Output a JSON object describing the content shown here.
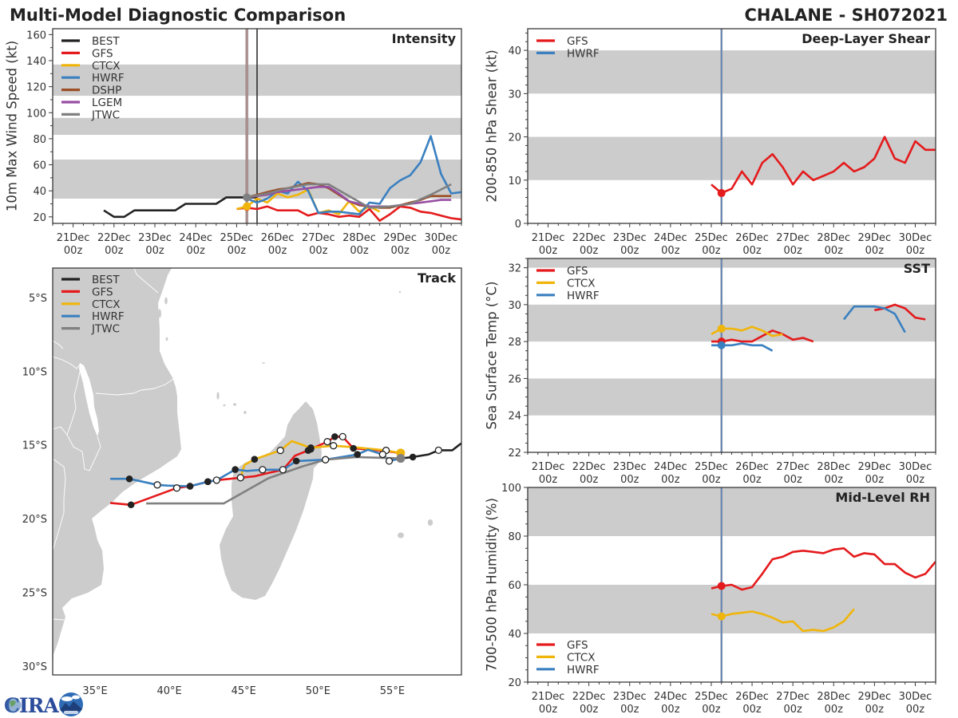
{
  "header": {
    "title": "Multi-Model Diagnostic Comparison",
    "storm_id": "CHALANE - SH072021"
  },
  "logo": {
    "text": "CIRA"
  },
  "colors": {
    "BEST": "#222222",
    "GFS": "#e41a1c",
    "CTCX": "#f0b50a",
    "HWRF": "#3a80c0",
    "DSHP": "#9b4f26",
    "LGEM": "#984ea3",
    "JTWC": "#808080",
    "band": "#cccccc",
    "land": "#cccccc",
    "forecast_init_line": "#5b7fb8",
    "intensity_init_line": "#a07878",
    "intensity_current_line": "#222222"
  },
  "time_axis": {
    "range": [
      "20Dec 12z",
      "30Dec 12z"
    ],
    "ticks": [
      {
        "day": "21Dec",
        "hour": "00z"
      },
      {
        "day": "22Dec",
        "hour": "00z"
      },
      {
        "day": "23Dec",
        "hour": "00z"
      },
      {
        "day": "24Dec",
        "hour": "00z"
      },
      {
        "day": "25Dec",
        "hour": "00z"
      },
      {
        "day": "26Dec",
        "hour": "00z"
      },
      {
        "day": "27Dec",
        "hour": "00z"
      },
      {
        "day": "28Dec",
        "hour": "00z"
      },
      {
        "day": "29Dec",
        "hour": "00z"
      },
      {
        "day": "30Dec",
        "hour": "00z"
      }
    ]
  },
  "chart_data": [
    {
      "id": "intensity",
      "type": "line",
      "title": "Intensity",
      "xlabel": "",
      "ylabel": "10m Max Wind Speed (kt)",
      "ylim": [
        15,
        164.5
      ],
      "yticks": [
        20,
        40,
        60,
        80,
        100,
        120,
        140,
        160
      ],
      "grid": false,
      "bands": [
        [
          34,
          64
        ],
        [
          83,
          96
        ],
        [
          113,
          137
        ]
      ],
      "legend": [
        "BEST",
        "GFS",
        "CTCX",
        "HWRF",
        "DSHP",
        "LGEM",
        "JTWC"
      ],
      "legend_position": "upper-left",
      "vlines": [
        {
          "time": "25Dec 06z",
          "color_key": "intensity_init_line"
        },
        {
          "time": "25Dec 12z",
          "color_key": "intensity_current_line"
        }
      ],
      "series": [
        {
          "name": "BEST",
          "start": "21Dec 18z",
          "step_h": 6,
          "values": [
            25,
            20,
            20,
            25,
            25,
            25,
            25,
            25,
            30,
            30,
            30,
            30,
            35,
            35,
            35,
            35
          ]
        },
        {
          "name": "GFS",
          "start": "25Dec 00z",
          "step_h": 6,
          "values": [
            26,
            27,
            26,
            28,
            25,
            25,
            25,
            21,
            23,
            22,
            20,
            21,
            20,
            26,
            17,
            22,
            28,
            27,
            24,
            23,
            21,
            19,
            18
          ]
        },
        {
          "name": "CTCX",
          "start": "25Dec 00z",
          "step_h": 6,
          "values": [
            26,
            28,
            34,
            31,
            38,
            35,
            37,
            41,
            23,
            25,
            22,
            32,
            24,
            28,
            24
          ]
        },
        {
          "name": "HWRF",
          "start": "25Dec 06z",
          "step_h": 6,
          "values": [
            34,
            31,
            34,
            40,
            38,
            47,
            40,
            23,
            24,
            24,
            23,
            22,
            31,
            30,
            42,
            48,
            52,
            62,
            82,
            53,
            38,
            39
          ]
        },
        {
          "name": "DSHP",
          "start": "25Dec 06z",
          "step_h": 6,
          "values": [
            35,
            37,
            39,
            41,
            42,
            44,
            46,
            45,
            42,
            37,
            32,
            29,
            28,
            27,
            27,
            29,
            31,
            33,
            36,
            36,
            36
          ]
        },
        {
          "name": "LGEM",
          "start": "25Dec 06z",
          "step_h": 6,
          "values": [
            35,
            36,
            37,
            39,
            40,
            41,
            42,
            43,
            43,
            38,
            32,
            30,
            28,
            28,
            28,
            29,
            30,
            31,
            32,
            33,
            33
          ]
        },
        {
          "name": "JTWC",
          "start": "25Dec 06z",
          "step_h": 12,
          "values": [
            35,
            38,
            42,
            45,
            45,
            36,
            27,
            28,
            30,
            37,
            45
          ]
        }
      ],
      "markers": [
        {
          "series": "GFS",
          "time": "25Dec 06z",
          "value": 27
        },
        {
          "series": "CTCX",
          "time": "25Dec 06z",
          "value": 28
        },
        {
          "series": "JTWC",
          "time": "25Dec 06z",
          "value": 35
        }
      ]
    },
    {
      "id": "shear",
      "type": "line",
      "title": "Deep-Layer Shear",
      "xlabel": "",
      "ylabel": "200-850 hPa Shear (kt)",
      "ylim": [
        0,
        45
      ],
      "yticks": [
        0,
        10,
        20,
        30,
        40
      ],
      "grid": false,
      "bands": [
        [
          10,
          20
        ],
        [
          30,
          40
        ]
      ],
      "legend": [
        "GFS",
        "HWRF"
      ],
      "legend_position": "upper-left",
      "vlines": [
        {
          "time": "25Dec 06z",
          "color_key": "forecast_init_line"
        }
      ],
      "series": [
        {
          "name": "GFS",
          "start": "25Dec 00z",
          "step_h": 6,
          "values": [
            9,
            7,
            8,
            12,
            9,
            14,
            16,
            13,
            9,
            12,
            10,
            11,
            12,
            14,
            12,
            13,
            15,
            20,
            15,
            14,
            19,
            17,
            17
          ]
        }
      ],
      "markers": [
        {
          "series": "GFS",
          "time": "25Dec 06z",
          "value": 7
        }
      ]
    },
    {
      "id": "sst",
      "type": "line",
      "title": "SST",
      "xlabel": "",
      "ylabel": "Sea Surface Temp (°C)",
      "ylim": [
        22,
        32.5
      ],
      "yticks": [
        22,
        24,
        26,
        28,
        30,
        32
      ],
      "grid": false,
      "bands": [
        [
          24,
          26
        ],
        [
          28,
          30
        ],
        [
          32,
          34
        ]
      ],
      "legend": [
        "GFS",
        "CTCX",
        "HWRF"
      ],
      "legend_position": "upper-left",
      "vlines": [
        {
          "time": "25Dec 06z",
          "color_key": "forecast_init_line"
        }
      ],
      "series": [
        {
          "name": "GFS",
          "start": "25Dec 00z",
          "step_h": 6,
          "values": [
            28.0,
            28.0,
            28.1,
            28.0,
            28.0,
            28.3,
            28.6,
            28.4,
            28.1,
            28.2,
            28.0,
            null,
            null,
            null,
            null,
            null,
            29.7,
            29.8,
            30.0,
            29.8,
            29.3,
            29.2
          ]
        },
        {
          "name": "CTCX",
          "start": "25Dec 00z",
          "step_h": 6,
          "values": [
            28.4,
            28.7,
            28.7,
            28.6,
            28.8,
            28.6,
            28.3,
            28.4
          ]
        },
        {
          "name": "HWRF",
          "start": "25Dec 00z",
          "step_h": 6,
          "values": [
            27.8,
            27.8,
            27.8,
            27.9,
            27.8,
            27.8,
            27.5,
            null,
            null,
            null,
            null,
            null,
            null,
            29.2,
            29.9,
            29.9,
            29.9,
            29.8,
            29.5,
            28.5
          ]
        }
      ],
      "markers": [
        {
          "series": "GFS",
          "time": "25Dec 06z",
          "value": 28.0
        },
        {
          "series": "CTCX",
          "time": "25Dec 06z",
          "value": 28.7
        },
        {
          "series": "HWRF",
          "time": "25Dec 06z",
          "value": 27.8
        }
      ]
    },
    {
      "id": "rh",
      "type": "line",
      "title": "Mid-Level RH",
      "xlabel": "",
      "ylabel": "700-500 hPa Humidity (%)",
      "ylim": [
        20,
        100
      ],
      "yticks": [
        20,
        40,
        60,
        80,
        100
      ],
      "grid": false,
      "bands": [
        [
          40,
          60
        ],
        [
          80,
          100
        ]
      ],
      "legend": [
        "GFS",
        "CTCX",
        "HWRF"
      ],
      "legend_position": "lower-left",
      "vlines": [
        {
          "time": "25Dec 06z",
          "color_key": "forecast_init_line"
        }
      ],
      "series": [
        {
          "name": "GFS",
          "start": "25Dec 00z",
          "step_h": 6,
          "values": [
            58.5,
            59.5,
            60,
            58,
            59,
            64.5,
            70.5,
            71.5,
            73.5,
            74,
            73.5,
            73,
            74.5,
            75,
            71.5,
            73,
            72.5,
            68.5,
            68.5,
            65,
            63,
            64.5,
            69.5
          ]
        },
        {
          "name": "CTCX",
          "start": "25Dec 00z",
          "step_h": 6,
          "values": [
            48,
            47,
            48,
            48.5,
            49,
            48,
            46.5,
            44.5,
            45,
            41,
            41.5,
            41,
            42.5,
            45,
            50
          ]
        }
      ],
      "markers": [
        {
          "series": "GFS",
          "time": "25Dec 06z",
          "value": 59.5
        },
        {
          "series": "CTCX",
          "time": "25Dec 06z",
          "value": 47
        }
      ]
    },
    {
      "id": "track",
      "type": "map",
      "title": "Track",
      "lon_range": [
        32.15,
        59.65
      ],
      "lat_range": [
        -30.6,
        -3.0
      ],
      "lon_ticks": [
        {
          "value": 35,
          "label": "35°E"
        },
        {
          "value": 40,
          "label": "40°E"
        },
        {
          "value": 45,
          "label": "45°E"
        },
        {
          "value": 50,
          "label": "50°E"
        },
        {
          "value": 55,
          "label": "55°E"
        }
      ],
      "lat_ticks": [
        {
          "value": -5,
          "label": "5°S"
        },
        {
          "value": -10,
          "label": "10°S"
        },
        {
          "value": -15,
          "label": "15°S"
        },
        {
          "value": -20,
          "label": "20°S"
        },
        {
          "value": -25,
          "label": "25°S"
        },
        {
          "value": -30,
          "label": "30°S"
        }
      ],
      "legend": [
        "BEST",
        "GFS",
        "CTCX",
        "HWRF",
        "JTWC"
      ],
      "legend_position": "upper-left",
      "tracks": [
        {
          "name": "BEST",
          "points": [
            [
              60.2,
              -14.5,
              null
            ],
            [
              59.5,
              -15.0,
              null
            ],
            [
              59.04,
              -15.36,
              null
            ],
            [
              58.11,
              -15.36,
              "open"
            ],
            [
              57.45,
              -15.64,
              null
            ],
            [
              56.38,
              -15.82,
              "filled"
            ],
            [
              55.56,
              -15.91,
              null
            ]
          ]
        },
        {
          "name": "GFS",
          "points": [
            [
              55.56,
              -15.55,
              null
            ],
            [
              54.52,
              -15.41,
              null
            ],
            [
              52.38,
              -15.23,
              "filled"
            ],
            [
              51.66,
              -14.44,
              "open"
            ],
            [
              51.13,
              -14.44,
              "filled"
            ],
            [
              50.63,
              -14.78,
              "open"
            ],
            [
              49.52,
              -15.28,
              "filled"
            ],
            [
              49.34,
              -15.37,
              "filled"
            ],
            [
              48.45,
              -15.73,
              null
            ],
            [
              47.64,
              -16.68,
              "open"
            ],
            [
              46.48,
              -16.94,
              null
            ],
            [
              45.77,
              -17.12,
              null
            ],
            [
              44.79,
              -17.22,
              "open"
            ],
            [
              43.18,
              -17.39,
              null
            ],
            [
              42.59,
              -17.49,
              "filled"
            ],
            [
              41.39,
              -17.8,
              "filled"
            ],
            [
              40.5,
              -17.92,
              "open"
            ],
            [
              37.42,
              -19.06,
              "filled"
            ],
            [
              36.02,
              -18.93,
              null
            ]
          ]
        },
        {
          "name": "CTCX",
          "points": [
            [
              55.56,
              -15.55,
              "start"
            ],
            [
              54.58,
              -15.37,
              "open"
            ],
            [
              52.47,
              -15.16,
              null
            ],
            [
              51.04,
              -15.05,
              "open"
            ],
            [
              49.52,
              -15.19,
              "filled"
            ],
            [
              48.23,
              -14.74,
              null
            ],
            [
              47.47,
              -15.37,
              "open"
            ],
            [
              45.73,
              -15.97,
              "filled"
            ],
            [
              45.05,
              -16.36,
              null
            ],
            [
              44.79,
              -17.22,
              "open"
            ]
          ]
        },
        {
          "name": "HWRF",
          "points": [
            [
              55.56,
              -15.91,
              null
            ],
            [
              54.79,
              -16.09,
              "open"
            ],
            [
              54.35,
              -15.64,
              "open"
            ],
            [
              53.36,
              -15.33,
              null
            ],
            [
              52.65,
              -15.64,
              "filled"
            ],
            [
              50.5,
              -16.0,
              "open"
            ],
            [
              48.54,
              -16.09,
              "filled"
            ],
            [
              47.64,
              -16.68,
              null
            ],
            [
              46.27,
              -16.68,
              "open"
            ],
            [
              45.23,
              -16.76,
              null
            ],
            [
              44.43,
              -16.67,
              "filled"
            ],
            [
              43.18,
              -17.39,
              "open"
            ],
            [
              42.59,
              -17.49,
              "filled"
            ],
            [
              41.39,
              -17.8,
              "filled"
            ],
            [
              39.87,
              -17.76,
              null
            ],
            [
              39.19,
              -17.71,
              "open"
            ],
            [
              37.31,
              -17.3,
              "filled"
            ],
            [
              36.02,
              -17.3,
              null
            ]
          ]
        },
        {
          "name": "JTWC",
          "points": [
            [
              55.56,
              -15.91,
              "start"
            ],
            [
              52.56,
              -15.82,
              null
            ],
            [
              50.5,
              -16.0,
              "open"
            ],
            [
              48.98,
              -16.45,
              null
            ],
            [
              46.66,
              -17.26,
              null
            ],
            [
              43.65,
              -18.97,
              null
            ],
            [
              38.44,
              -18.97,
              null
            ]
          ]
        }
      ]
    }
  ]
}
